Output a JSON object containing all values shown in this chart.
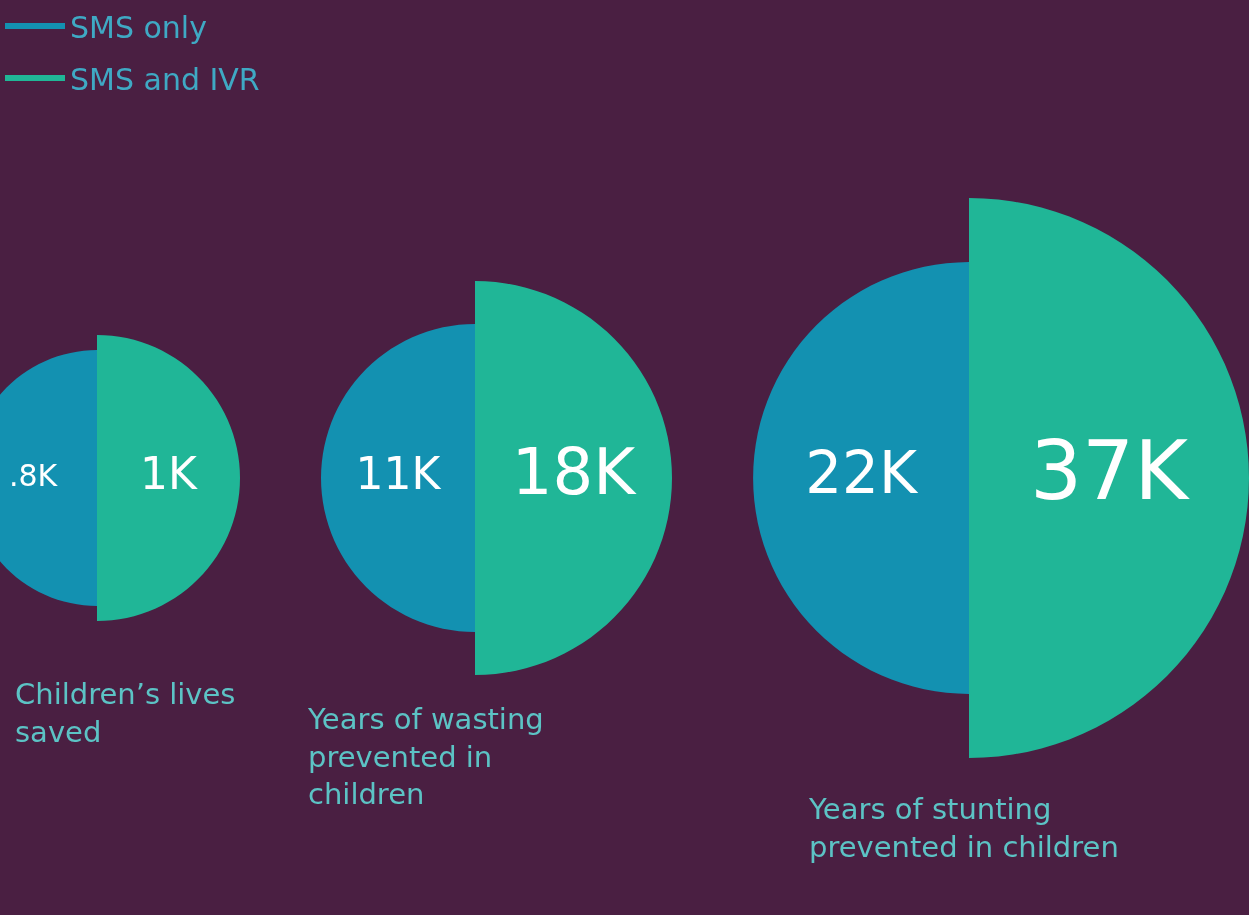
{
  "chart_data": {
    "type": "other",
    "legend": "top left",
    "categories": [
      "Children’s lives saved",
      "Years of wasting prevented in children",
      "Years of stunting prevented in children"
    ],
    "series": [
      {
        "name": "SMS only",
        "color": "#1391b1",
        "values": [
          800,
          11000,
          22000
        ],
        "value_labels": [
          ".8K",
          "11K",
          "22K"
        ]
      },
      {
        "name": "SMS and IVR",
        "color": "#20b697",
        "values": [
          1000,
          18000,
          37000
        ],
        "value_labels": [
          "1K",
          "18K",
          "37K"
        ]
      }
    ]
  }
}
